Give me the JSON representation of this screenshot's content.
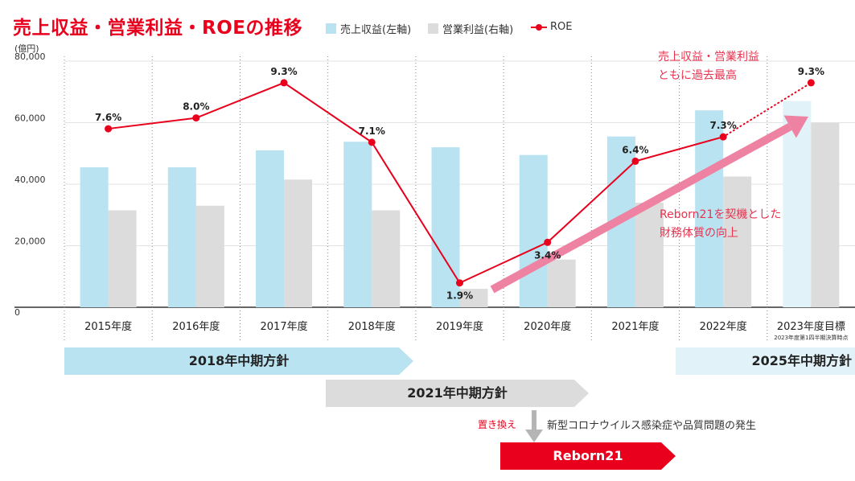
{
  "title": "売上収益・営業利益・ROEの推移",
  "legend": {
    "revenue": "売上収益(左軸)",
    "profit": "営業利益(右軸)",
    "roe": "ROE"
  },
  "unit": "(億円)",
  "colors": {
    "revenue": "#b9e3f0",
    "revenue_target": "#e1f3f8",
    "profit": "#dcdcdc",
    "roe": "#e8001c",
    "arrow": "#ee82a3",
    "accent": "#e8001c"
  },
  "chart_data": {
    "type": "bar",
    "categories": [
      "2015年度",
      "2016年度",
      "2017年度",
      "2018年度",
      "2019年度",
      "2020年度",
      "2021年度",
      "2022年度",
      "2023年度目標"
    ],
    "category_note": "2023年度第1四半期決算時点",
    "series": [
      {
        "name": "売上収益(左軸)",
        "axis": "left",
        "values": [
          45500,
          45500,
          51000,
          53800,
          52000,
          49500,
          55500,
          64000,
          67000
        ]
      },
      {
        "name": "営業利益(右軸)",
        "axis": "right",
        "values": [
          31500,
          33000,
          41500,
          31500,
          6000,
          15500,
          34000,
          42500,
          60000
        ]
      }
    ],
    "line_series": {
      "name": "ROE",
      "unit": "%",
      "values": [
        7.6,
        8.0,
        9.3,
        7.1,
        1.9,
        3.4,
        6.4,
        7.3,
        9.3
      ],
      "labels": [
        "7.6%",
        "8.0%",
        "9.3%",
        "7.1%",
        "1.9%",
        "3.4%",
        "6.4%",
        "7.3%",
        "9.3%"
      ],
      "target_last_dashed": true
    },
    "y_ticks": [
      "0",
      "20,000",
      "40,000",
      "60,000",
      "80,000"
    ],
    "ylim": [
      0,
      80000
    ],
    "roe_scale": [
      1.0,
      10.1
    ],
    "grid": true
  },
  "annotations": {
    "record": [
      "売上収益・営業利益",
      "ともに過去最高"
    ],
    "reborn_text": [
      "Reborn21を契機とした",
      "財務体質の向上"
    ]
  },
  "policies": {
    "p2018": "2018年中期方針",
    "p2021": "2021年中期方針",
    "p2025": "2025年中期方針"
  },
  "replace_label": "置き換え",
  "covid_label": "新型コロナウイルス感染症や品質問題の発生",
  "reborn_label": "Reborn21"
}
